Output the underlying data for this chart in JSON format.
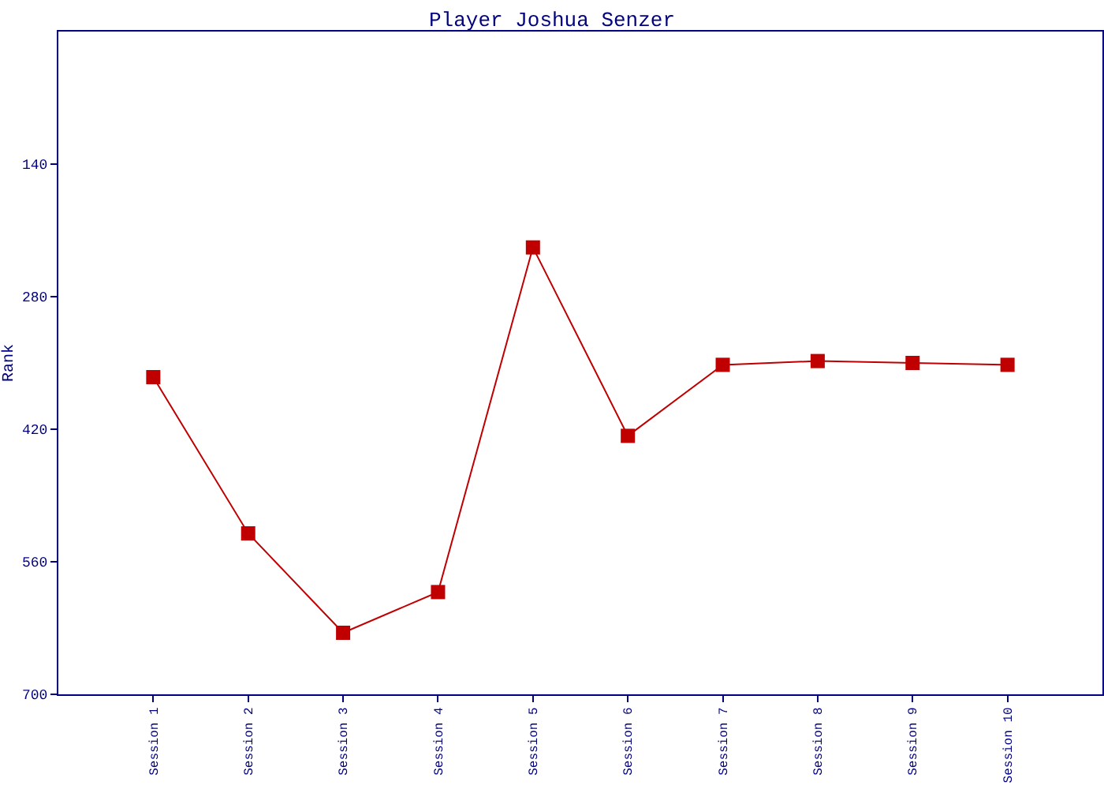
{
  "chart_data": {
    "type": "line",
    "title": "Player Joshua Senzer",
    "ylabel": "Rank",
    "categories": [
      "Session 1",
      "Session 2",
      "Session 3",
      "Session 4",
      "Session 5",
      "Session 6",
      "Session 7",
      "Session 8",
      "Session 9",
      "Session 10"
    ],
    "series": [
      {
        "color": "#c00000",
        "values": [
          365,
          530,
          635,
          592,
          228,
          427,
          352,
          348,
          350,
          352
        ]
      }
    ],
    "ylim": [
      700,
      0
    ],
    "yticks": [
      140,
      280,
      420,
      560,
      700
    ],
    "marker": "square",
    "line_style": "solid"
  }
}
